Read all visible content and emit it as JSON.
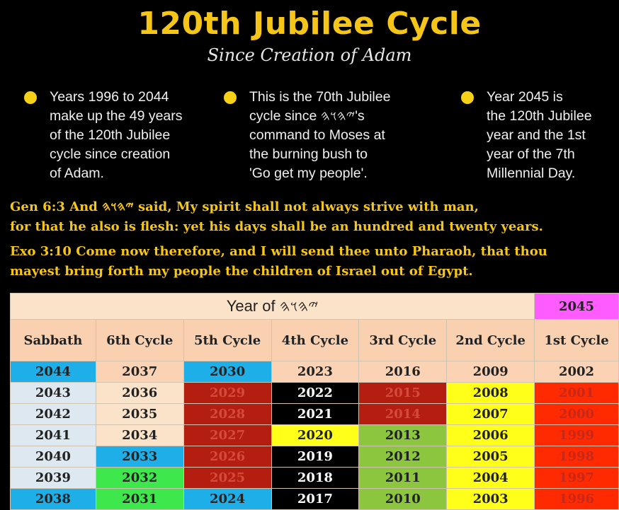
{
  "title": "120th Jubilee Cycle",
  "subtitle": "Since Creation of Adam",
  "bullets": [
    "Years 1996 to 2044\nmake up the 49 years\nof the 120th Jubilee\ncycle since creation\nof Adam.",
    "This is the 70th Jubilee\ncycle since 𐤉𐤄𐤅𐤄's\ncommand to Moses at\nthe burning bush to\n'Go get my people'.",
    "Year 2045 is\nthe 120th Jubilee\nyear and the 1st\nyear of the 7th\nMillennial Day."
  ],
  "verses": [
    "Gen 6:3  And 𐤉𐤄𐤅𐤄 said, My spirit shall not always strive with man,",
    "for that he also is flesh: yet his days shall be an hundred and twenty years.",
    "Exo 3:10  Come now therefore, and I will send thee unto Pharaoh, that thou",
    "mayest bring forth my people the children of Israel out of Egypt."
  ],
  "table": {
    "header_main": "Year of 𐤉𐤄𐤅𐤄",
    "header_jubilee": "2045",
    "columns": [
      "Sabbath",
      "6th Cycle",
      "5th Cycle",
      "4th Cycle",
      "3rd Cycle",
      "2nd Cycle",
      "1st Cycle"
    ],
    "rows": [
      [
        "2044",
        "2037",
        "2030",
        "2023",
        "2016",
        "2009",
        "2002"
      ],
      [
        "2043",
        "2036",
        "2029",
        "2022",
        "2015",
        "2008",
        "2001"
      ],
      [
        "2042",
        "2035",
        "2028",
        "2021",
        "2014",
        "2007",
        "2000"
      ],
      [
        "2041",
        "2034",
        "2027",
        "2020",
        "2013",
        "2006",
        "1999"
      ],
      [
        "2040",
        "2033",
        "2026",
        "2019",
        "2012",
        "2005",
        "1998"
      ],
      [
        "2039",
        "2032",
        "2025",
        "2018",
        "2011",
        "2004",
        "1997"
      ],
      [
        "2038",
        "2031",
        "2024",
        "2017",
        "2010",
        "2003",
        "1996"
      ]
    ],
    "colors": {
      "peach": "#fbd3b4",
      "sky": "#1eaee8",
      "lightblue": "#dde8f0",
      "lightpeach": "#fbe3c9",
      "darkred": "#b31e10",
      "black": "#000000",
      "yellow": "#ffff1a",
      "green": "#8cc63f",
      "brightgreen": "#3ee84c",
      "red": "#ff2a00"
    },
    "cell_colors": [
      [
        "sky",
        "peach",
        "sky",
        "peach",
        "peach",
        "peach",
        "peach"
      ],
      [
        "lightblue",
        "lightpeach",
        "darkred",
        "black",
        "darkred",
        "yellow",
        "red"
      ],
      [
        "lightblue",
        "lightpeach",
        "darkred",
        "black",
        "darkred",
        "yellow",
        "red"
      ],
      [
        "lightblue",
        "lightpeach",
        "darkred",
        "yellow",
        "green",
        "yellow",
        "red"
      ],
      [
        "lightblue",
        "sky",
        "darkred",
        "black",
        "green",
        "yellow",
        "red"
      ],
      [
        "lightblue",
        "brightgreen",
        "darkred",
        "black",
        "green",
        "yellow",
        "red"
      ],
      [
        "sky",
        "brightgreen",
        "sky",
        "black",
        "green",
        "yellow",
        "red"
      ]
    ],
    "text_colors": {
      "darkred": "#d54a3a",
      "black": "#ffffff",
      "red": "#c8281a"
    }
  }
}
